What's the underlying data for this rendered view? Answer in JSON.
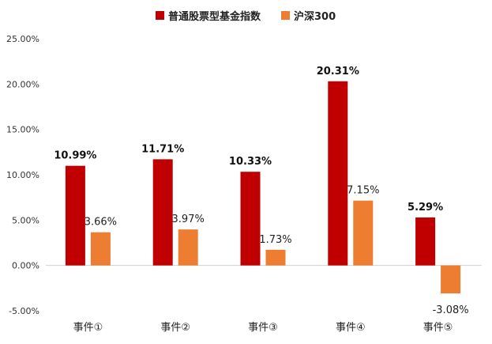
{
  "chart_data": {
    "type": "bar",
    "categories": [
      "事件①",
      "事件②",
      "事件③",
      "事件④",
      "事件⑤"
    ],
    "series": [
      {
        "name": "普通股票型基金指数",
        "values": [
          10.99,
          11.71,
          10.33,
          20.31,
          5.29
        ],
        "color": "#C00000",
        "labels": [
          "10.99%",
          "11.71%",
          "10.33%",
          "20.31%",
          "5.29%"
        ]
      },
      {
        "name": "沪深300",
        "values": [
          3.66,
          3.97,
          1.73,
          7.15,
          -3.08
        ],
        "color": "#ED7D31",
        "labels": [
          "3.66%",
          "3.97%",
          "1.73%",
          "7.15%",
          "-3.08%"
        ]
      }
    ],
    "ylim": [
      -5,
      25
    ],
    "yticks": [
      -5,
      0,
      5,
      10,
      15,
      20,
      25
    ],
    "ytick_labels": [
      "-5.00%",
      "0.00%",
      "5.00%",
      "10.00%",
      "15.00%",
      "20.00%",
      "25.00%"
    ],
    "legend_position": "top-center",
    "grid": false
  }
}
